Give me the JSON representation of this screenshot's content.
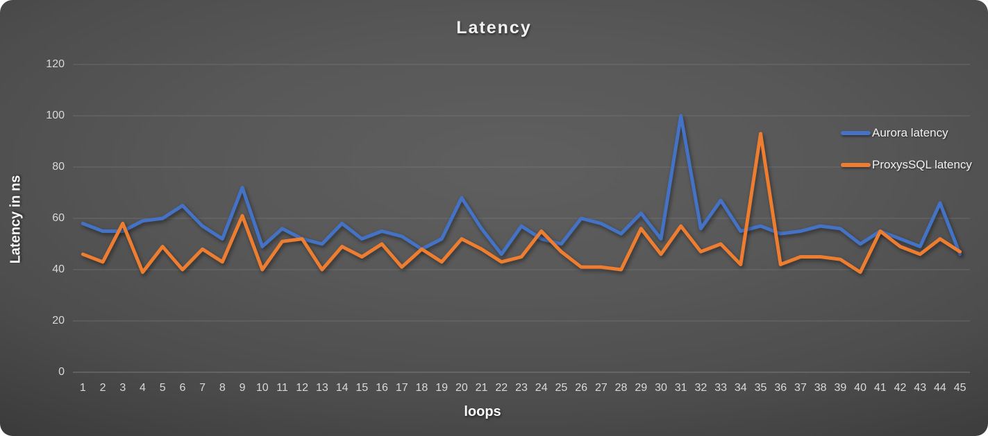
{
  "title": "Latency",
  "chart_data": {
    "type": "line",
    "title": "Latency",
    "xlabel": "loops",
    "ylabel": "Latency in ns",
    "categories": [
      1,
      2,
      3,
      4,
      5,
      6,
      7,
      8,
      9,
      10,
      11,
      12,
      13,
      14,
      15,
      16,
      17,
      18,
      19,
      20,
      21,
      22,
      23,
      24,
      25,
      26,
      27,
      28,
      29,
      30,
      31,
      32,
      33,
      34,
      35,
      36,
      37,
      38,
      39,
      40,
      41,
      42,
      43,
      44,
      45
    ],
    "series": [
      {
        "name": "Aurora latency",
        "color": "#4472C4",
        "values": [
          58,
          55,
          55,
          59,
          60,
          65,
          57,
          52,
          72,
          49,
          56,
          52,
          50,
          58,
          52,
          55,
          53,
          48,
          52,
          68,
          56,
          46,
          57,
          52,
          50,
          60,
          58,
          54,
          62,
          52,
          100,
          56,
          67,
          55,
          57,
          54,
          55,
          57,
          56,
          50,
          55,
          52,
          49,
          66,
          46
        ]
      },
      {
        "name": "ProxysSQL latency",
        "color": "#ED7D31",
        "values": [
          46,
          43,
          58,
          39,
          49,
          40,
          48,
          43,
          61,
          40,
          51,
          52,
          40,
          49,
          45,
          50,
          41,
          48,
          43,
          52,
          48,
          43,
          45,
          55,
          47,
          41,
          41,
          40,
          56,
          46,
          57,
          47,
          50,
          42,
          93,
          42,
          45,
          45,
          44,
          39,
          55,
          49,
          46,
          52,
          47
        ]
      }
    ],
    "ylim": [
      0,
      120
    ],
    "y_ticks": [
      0,
      20,
      40,
      60,
      80,
      100,
      120
    ],
    "grid": true,
    "legend_position": "right"
  },
  "colors": {
    "background_center": "#585858",
    "background_edge": "#1d1d1d",
    "gridline": "#7f7f7f",
    "tick_text": "#d9d9d9",
    "title_text": "#f2f2f2"
  }
}
